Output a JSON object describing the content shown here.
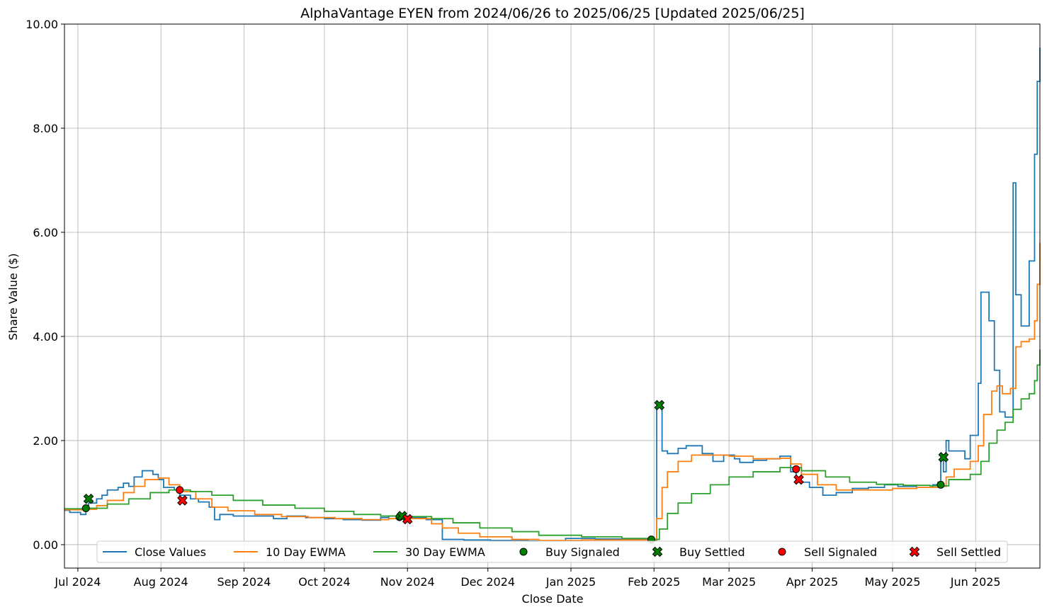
{
  "chart_data": {
    "type": "line",
    "title": "AlphaVantage EYEN from 2024/06/26 to 2025/06/25 [Updated 2025/06/25]",
    "xlabel": "Close Date",
    "ylabel": "Share Value ($)",
    "ylim": [
      -0.45,
      10.0
    ],
    "xlim": [
      "2024-06-26",
      "2025-06-25"
    ],
    "y_ticks": [
      0,
      2,
      4,
      6,
      8,
      10
    ],
    "y_tick_labels": [
      "0.00",
      "2.00",
      "4.00",
      "6.00",
      "8.00",
      "10.00"
    ],
    "x_ticks": [
      "2024-07-01",
      "2024-08-01",
      "2024-09-01",
      "2024-10-01",
      "2024-11-01",
      "2024-12-01",
      "2025-01-01",
      "2025-02-01",
      "2025-03-01",
      "2025-04-01",
      "2025-05-01",
      "2025-06-01"
    ],
    "x_tick_labels": [
      "Jul 2024",
      "Aug 2024",
      "Sep 2024",
      "Oct 2024",
      "Nov 2024",
      "Dec 2024",
      "Jan 2025",
      "Feb 2025",
      "Mar 2025",
      "Apr 2025",
      "May 2025",
      "Jun 2025"
    ],
    "grid": true,
    "legend_position": "bottom",
    "colors": {
      "close": "#1f77b4",
      "ewma10": "#ff7f0e",
      "ewma30": "#2ca02c",
      "buy": "#008000",
      "sell": "#ff0000"
    },
    "series": [
      {
        "name": "Close Values",
        "style": "step",
        "points": [
          [
            "2024-06-26",
            0.66
          ],
          [
            "2024-06-28",
            0.62
          ],
          [
            "2024-07-02",
            0.58
          ],
          [
            "2024-07-04",
            0.7
          ],
          [
            "2024-07-05",
            0.8
          ],
          [
            "2024-07-08",
            0.88
          ],
          [
            "2024-07-10",
            0.95
          ],
          [
            "2024-07-12",
            1.05
          ],
          [
            "2024-07-16",
            1.1
          ],
          [
            "2024-07-18",
            1.18
          ],
          [
            "2024-07-20",
            1.12
          ],
          [
            "2024-07-22",
            1.3
          ],
          [
            "2024-07-25",
            1.42
          ],
          [
            "2024-07-29",
            1.35
          ],
          [
            "2024-07-31",
            1.25
          ],
          [
            "2024-08-02",
            1.1
          ],
          [
            "2024-08-06",
            1.05
          ],
          [
            "2024-08-08",
            0.95
          ],
          [
            "2024-08-12",
            0.88
          ],
          [
            "2024-08-15",
            0.82
          ],
          [
            "2024-08-19",
            0.72
          ],
          [
            "2024-08-21",
            0.48
          ],
          [
            "2024-08-23",
            0.58
          ],
          [
            "2024-08-28",
            0.55
          ],
          [
            "2024-09-05",
            0.55
          ],
          [
            "2024-09-12",
            0.5
          ],
          [
            "2024-09-17",
            0.55
          ],
          [
            "2024-09-24",
            0.52
          ],
          [
            "2024-10-01",
            0.5
          ],
          [
            "2024-10-08",
            0.48
          ],
          [
            "2024-10-15",
            0.47
          ],
          [
            "2024-10-22",
            0.52
          ],
          [
            "2024-10-25",
            0.55
          ],
          [
            "2024-10-30",
            0.52
          ],
          [
            "2024-11-08",
            0.48
          ],
          [
            "2024-11-14",
            0.1
          ],
          [
            "2024-11-22",
            0.09
          ],
          [
            "2024-12-02",
            0.08
          ],
          [
            "2024-12-16",
            0.07
          ],
          [
            "2024-12-30",
            0.12
          ],
          [
            "2025-01-10",
            0.11
          ],
          [
            "2025-01-20",
            0.1
          ],
          [
            "2025-01-31",
            0.09
          ],
          [
            "2025-02-02",
            2.65
          ],
          [
            "2025-02-03",
            2.72
          ],
          [
            "2025-02-04",
            1.8
          ],
          [
            "2025-02-06",
            1.75
          ],
          [
            "2025-02-10",
            1.85
          ],
          [
            "2025-02-13",
            1.9
          ],
          [
            "2025-02-19",
            1.75
          ],
          [
            "2025-02-23",
            1.6
          ],
          [
            "2025-02-27",
            1.72
          ],
          [
            "2025-03-03",
            1.65
          ],
          [
            "2025-03-05",
            1.58
          ],
          [
            "2025-03-10",
            1.62
          ],
          [
            "2025-03-15",
            1.65
          ],
          [
            "2025-03-20",
            1.7
          ],
          [
            "2025-03-24",
            1.4
          ],
          [
            "2025-03-26",
            1.2
          ],
          [
            "2025-03-31",
            1.1
          ],
          [
            "2025-04-05",
            0.95
          ],
          [
            "2025-04-10",
            1.0
          ],
          [
            "2025-04-16",
            1.08
          ],
          [
            "2025-04-22",
            1.1
          ],
          [
            "2025-04-28",
            1.15
          ],
          [
            "2025-05-03",
            1.12
          ],
          [
            "2025-05-10",
            1.1
          ],
          [
            "2025-05-16",
            1.15
          ],
          [
            "2025-05-18",
            1.2
          ],
          [
            "2025-05-19",
            1.65
          ],
          [
            "2025-05-20",
            1.4
          ],
          [
            "2025-05-21",
            2.0
          ],
          [
            "2025-05-22",
            1.8
          ],
          [
            "2025-05-28",
            1.65
          ],
          [
            "2025-05-30",
            2.1
          ],
          [
            "2025-06-02",
            3.1
          ],
          [
            "2025-06-03",
            4.85
          ],
          [
            "2025-06-06",
            4.3
          ],
          [
            "2025-06-08",
            3.35
          ],
          [
            "2025-06-10",
            2.55
          ],
          [
            "2025-06-12",
            2.45
          ],
          [
            "2025-06-15",
            6.95
          ],
          [
            "2025-06-16",
            4.8
          ],
          [
            "2025-06-18",
            4.2
          ],
          [
            "2025-06-21",
            5.45
          ],
          [
            "2025-06-23",
            7.5
          ],
          [
            "2025-06-24",
            8.9
          ],
          [
            "2025-06-25",
            9.55
          ]
        ]
      },
      {
        "name": "10 Day EWMA",
        "style": "step",
        "points": [
          [
            "2024-06-26",
            0.67
          ],
          [
            "2024-07-04",
            0.68
          ],
          [
            "2024-07-08",
            0.75
          ],
          [
            "2024-07-12",
            0.85
          ],
          [
            "2024-07-18",
            1.0
          ],
          [
            "2024-07-22",
            1.12
          ],
          [
            "2024-07-26",
            1.25
          ],
          [
            "2024-07-31",
            1.28
          ],
          [
            "2024-08-04",
            1.15
          ],
          [
            "2024-08-08",
            1.02
          ],
          [
            "2024-08-14",
            0.88
          ],
          [
            "2024-08-20",
            0.72
          ],
          [
            "2024-08-26",
            0.65
          ],
          [
            "2024-09-05",
            0.58
          ],
          [
            "2024-09-15",
            0.54
          ],
          [
            "2024-09-25",
            0.52
          ],
          [
            "2024-10-05",
            0.5
          ],
          [
            "2024-10-15",
            0.48
          ],
          [
            "2024-10-25",
            0.5
          ],
          [
            "2024-11-05",
            0.5
          ],
          [
            "2024-11-10",
            0.4
          ],
          [
            "2024-11-14",
            0.32
          ],
          [
            "2024-11-20",
            0.22
          ],
          [
            "2024-11-28",
            0.15
          ],
          [
            "2024-12-10",
            0.1
          ],
          [
            "2024-12-20",
            0.08
          ],
          [
            "2025-01-05",
            0.09
          ],
          [
            "2025-01-20",
            0.09
          ],
          [
            "2025-01-31",
            0.09
          ],
          [
            "2025-02-02",
            0.5
          ],
          [
            "2025-02-04",
            1.1
          ],
          [
            "2025-02-06",
            1.4
          ],
          [
            "2025-02-10",
            1.6
          ],
          [
            "2025-02-15",
            1.72
          ],
          [
            "2025-02-23",
            1.72
          ],
          [
            "2025-03-01",
            1.7
          ],
          [
            "2025-03-10",
            1.65
          ],
          [
            "2025-03-20",
            1.66
          ],
          [
            "2025-03-24",
            1.55
          ],
          [
            "2025-03-28",
            1.35
          ],
          [
            "2025-04-03",
            1.15
          ],
          [
            "2025-04-10",
            1.05
          ],
          [
            "2025-04-20",
            1.05
          ],
          [
            "2025-05-01",
            1.08
          ],
          [
            "2025-05-10",
            1.1
          ],
          [
            "2025-05-18",
            1.12
          ],
          [
            "2025-05-21",
            1.3
          ],
          [
            "2025-05-24",
            1.45
          ],
          [
            "2025-05-30",
            1.6
          ],
          [
            "2025-06-02",
            1.9
          ],
          [
            "2025-06-04",
            2.5
          ],
          [
            "2025-06-07",
            2.95
          ],
          [
            "2025-06-09",
            3.05
          ],
          [
            "2025-06-11",
            2.9
          ],
          [
            "2025-06-14",
            3.0
          ],
          [
            "2025-06-16",
            3.8
          ],
          [
            "2025-06-18",
            3.9
          ],
          [
            "2025-06-21",
            3.95
          ],
          [
            "2025-06-23",
            4.3
          ],
          [
            "2025-06-24",
            5.0
          ],
          [
            "2025-06-25",
            5.8
          ]
        ]
      },
      {
        "name": "30 Day EWMA",
        "style": "step",
        "points": [
          [
            "2024-06-26",
            0.69
          ],
          [
            "2024-07-05",
            0.7
          ],
          [
            "2024-07-12",
            0.78
          ],
          [
            "2024-07-20",
            0.88
          ],
          [
            "2024-07-28",
            1.0
          ],
          [
            "2024-08-04",
            1.05
          ],
          [
            "2024-08-12",
            1.02
          ],
          [
            "2024-08-20",
            0.95
          ],
          [
            "2024-08-28",
            0.85
          ],
          [
            "2024-09-08",
            0.76
          ],
          [
            "2024-09-20",
            0.7
          ],
          [
            "2024-10-01",
            0.64
          ],
          [
            "2024-10-12",
            0.58
          ],
          [
            "2024-10-22",
            0.55
          ],
          [
            "2024-11-01",
            0.54
          ],
          [
            "2024-11-10",
            0.5
          ],
          [
            "2024-11-18",
            0.42
          ],
          [
            "2024-11-28",
            0.32
          ],
          [
            "2024-12-10",
            0.25
          ],
          [
            "2024-12-20",
            0.18
          ],
          [
            "2025-01-05",
            0.15
          ],
          [
            "2025-01-20",
            0.12
          ],
          [
            "2025-01-31",
            0.1
          ],
          [
            "2025-02-03",
            0.3
          ],
          [
            "2025-02-06",
            0.6
          ],
          [
            "2025-02-10",
            0.8
          ],
          [
            "2025-02-15",
            0.98
          ],
          [
            "2025-02-22",
            1.15
          ],
          [
            "2025-03-01",
            1.3
          ],
          [
            "2025-03-10",
            1.4
          ],
          [
            "2025-03-20",
            1.48
          ],
          [
            "2025-03-28",
            1.42
          ],
          [
            "2025-04-06",
            1.3
          ],
          [
            "2025-04-15",
            1.2
          ],
          [
            "2025-04-25",
            1.16
          ],
          [
            "2025-05-05",
            1.14
          ],
          [
            "2025-05-15",
            1.13
          ],
          [
            "2025-05-22",
            1.25
          ],
          [
            "2025-05-30",
            1.35
          ],
          [
            "2025-06-03",
            1.6
          ],
          [
            "2025-06-06",
            1.95
          ],
          [
            "2025-06-09",
            2.2
          ],
          [
            "2025-06-12",
            2.35
          ],
          [
            "2025-06-15",
            2.6
          ],
          [
            "2025-06-18",
            2.8
          ],
          [
            "2025-06-21",
            2.9
          ],
          [
            "2025-06-23",
            3.15
          ],
          [
            "2025-06-24",
            3.45
          ],
          [
            "2025-06-25",
            3.75
          ]
        ]
      }
    ],
    "markers": [
      {
        "name": "Buy Signaled",
        "shape": "circle",
        "color": "#008000",
        "points": [
          [
            "2024-07-04",
            0.7
          ],
          [
            "2024-10-29",
            0.53
          ],
          [
            "2025-01-31",
            0.1
          ],
          [
            "2025-05-19",
            1.15
          ]
        ]
      },
      {
        "name": "Buy Settled",
        "shape": "x",
        "color": "#008000",
        "points": [
          [
            "2024-07-05",
            0.88
          ],
          [
            "2024-10-30",
            0.55
          ],
          [
            "2025-02-03",
            2.68
          ],
          [
            "2025-05-20",
            1.68
          ]
        ]
      },
      {
        "name": "Sell Signaled",
        "shape": "circle",
        "color": "#ff0000",
        "points": [
          [
            "2024-08-08",
            1.05
          ],
          [
            "2025-03-26",
            1.45
          ]
        ]
      },
      {
        "name": "Sell Settled",
        "shape": "x",
        "color": "#ff0000",
        "points": [
          [
            "2024-08-09",
            0.85
          ],
          [
            "2024-11-01",
            0.49
          ],
          [
            "2025-03-27",
            1.25
          ]
        ]
      }
    ]
  }
}
